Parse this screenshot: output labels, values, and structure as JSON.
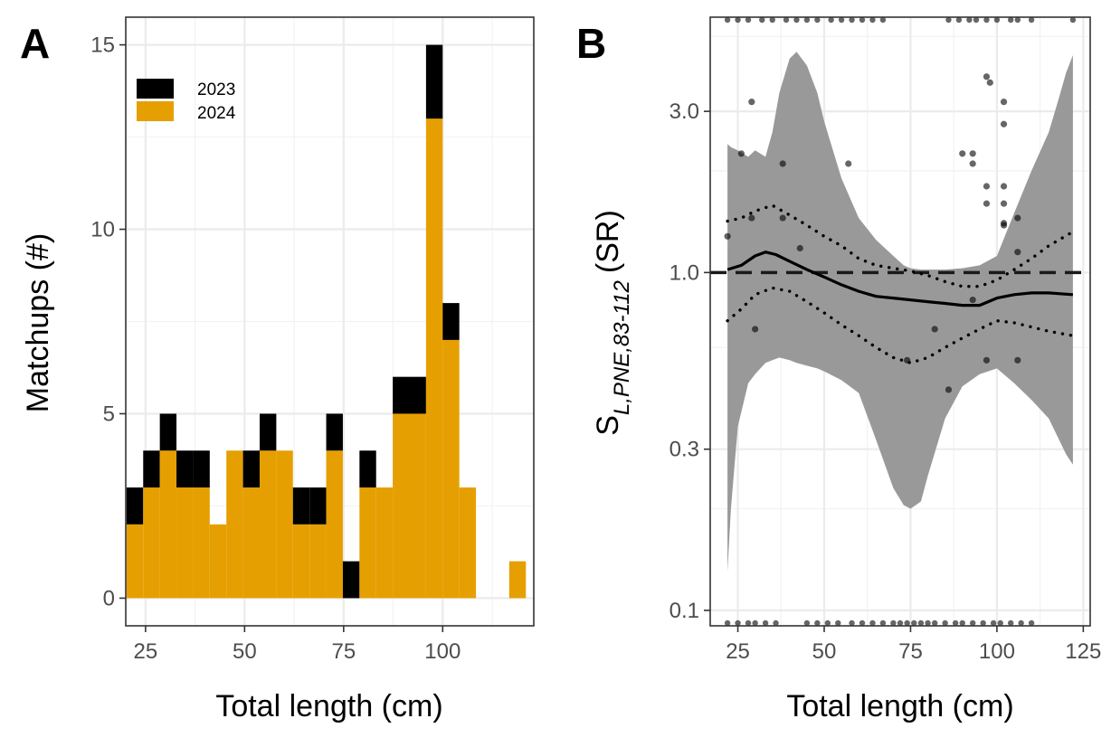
{
  "colors": {
    "y2023": "#000000",
    "y2024": "#E69F00",
    "band": "#999999"
  },
  "chart_data": [
    {
      "type": "bar",
      "panel_label": "A",
      "xlabel": "Total length (cm)",
      "ylabel": "Matchups (#)",
      "xlim": [
        20,
        123
      ],
      "ylim": [
        -0.75,
        15.75
      ],
      "x_ticks": [
        25,
        50,
        75,
        100
      ],
      "y_ticks": [
        0,
        5,
        10,
        15
      ],
      "grid": true,
      "stacked": true,
      "legend": {
        "position": "top-left",
        "entries": [
          "2023",
          "2024"
        ]
      },
      "bin_width": 4.2,
      "bin_centers": [
        22.3,
        26.5,
        30.7,
        34.9,
        39.1,
        43.3,
        47.5,
        51.7,
        55.9,
        60.1,
        64.3,
        68.5,
        72.7,
        76.9,
        81.1,
        85.3,
        89.5,
        93.7,
        97.9,
        102.1,
        106.3,
        110.5,
        114.7,
        118.9,
        123.1
      ],
      "series": [
        {
          "name": "2024",
          "values": [
            2,
            3,
            4,
            3,
            3,
            2,
            4,
            3,
            4,
            4,
            2,
            2,
            4,
            0,
            3,
            3,
            5,
            5,
            13,
            7,
            3,
            0,
            0,
            1,
            0
          ]
        },
        {
          "name": "2023",
          "values": [
            1,
            1,
            1,
            1,
            1,
            0,
            0,
            1,
            1,
            0,
            1,
            1,
            1,
            1,
            1,
            0,
            1,
            1,
            2,
            1,
            0,
            0,
            0,
            0,
            0
          ]
        }
      ]
    },
    {
      "type": "line",
      "panel_label": "B",
      "xlabel": "Total length (cm)",
      "ylabel_main": "S",
      "ylabel_sub": "L,PNE,83-112",
      "ylabel_unit": "(SR)",
      "y_scale": "log",
      "xlim": [
        17,
        127
      ],
      "ylim": [
        0.09,
        5.7
      ],
      "x_ticks": [
        25,
        50,
        75,
        100,
        125
      ],
      "y_ticks": [
        0.1,
        0.3,
        1.0,
        3.0
      ],
      "y_tick_labels": [
        "0.1",
        "0.3",
        "1.0",
        "3.0"
      ],
      "y_minor_ticks": [
        0.2,
        0.6,
        2.0,
        5.0
      ],
      "reference_line": 1.0,
      "grid": true,
      "series": [
        {
          "name": "",
          "style": "solid",
          "x": [
            22,
            26,
            30,
            33,
            36,
            40,
            45,
            50,
            55,
            60,
            65,
            70,
            75,
            80,
            85,
            90,
            95,
            100,
            105,
            110,
            115,
            122
          ],
          "y": [
            1.02,
            1.05,
            1.12,
            1.15,
            1.13,
            1.08,
            1.02,
            0.97,
            0.92,
            0.88,
            0.85,
            0.84,
            0.83,
            0.82,
            0.81,
            0.8,
            0.8,
            0.84,
            0.86,
            0.87,
            0.87,
            0.86
          ]
        },
        {
          "name": "",
          "style": "dotted",
          "x": [
            22,
            26,
            30,
            35,
            40,
            45,
            50,
            55,
            60,
            65,
            70,
            75,
            80,
            85,
            90,
            95,
            100,
            105,
            110,
            115,
            122
          ],
          "y": [
            1.42,
            1.45,
            1.52,
            1.58,
            1.48,
            1.38,
            1.28,
            1.2,
            1.1,
            1.05,
            1.03,
            1.01,
            0.98,
            0.94,
            0.91,
            0.91,
            0.95,
            1.02,
            1.1,
            1.2,
            1.32
          ]
        },
        {
          "name": "",
          "style": "dotted",
          "x": [
            22,
            26,
            30,
            35,
            40,
            45,
            50,
            55,
            60,
            65,
            70,
            75,
            80,
            85,
            90,
            95,
            100,
            105,
            110,
            115,
            122
          ],
          "y": [
            0.72,
            0.78,
            0.86,
            0.9,
            0.88,
            0.82,
            0.76,
            0.7,
            0.65,
            0.6,
            0.56,
            0.54,
            0.56,
            0.6,
            0.64,
            0.68,
            0.72,
            0.71,
            0.69,
            0.67,
            0.65
          ]
        }
      ],
      "band": {
        "x": [
          22,
          23,
          25,
          28,
          30,
          33,
          35,
          37,
          40,
          42,
          45,
          48,
          50,
          55,
          60,
          65,
          70,
          73,
          75,
          78,
          80,
          85,
          90,
          95,
          100,
          105,
          110,
          115,
          118,
          120,
          122
        ],
        "upper": [
          2.4,
          2.35,
          2.3,
          2.2,
          2.3,
          2.2,
          2.6,
          3.4,
          4.3,
          4.5,
          4.1,
          3.4,
          2.8,
          1.9,
          1.45,
          1.25,
          1.12,
          1.05,
          1.03,
          1.02,
          1.02,
          1.02,
          1.03,
          1.05,
          1.12,
          1.5,
          2.0,
          2.6,
          3.3,
          3.9,
          4.4
        ],
        "lower": [
          0.13,
          0.2,
          0.35,
          0.47,
          0.5,
          0.54,
          0.55,
          0.56,
          0.55,
          0.54,
          0.53,
          0.52,
          0.51,
          0.48,
          0.44,
          0.32,
          0.23,
          0.205,
          0.2,
          0.21,
          0.25,
          0.37,
          0.46,
          0.5,
          0.52,
          0.47,
          0.42,
          0.37,
          0.32,
          0.29,
          0.27
        ]
      },
      "points": {
        "x": [
          22,
          26,
          29,
          29,
          30,
          38,
          38,
          43,
          57,
          74,
          82,
          86,
          90,
          93,
          93,
          93,
          97,
          97,
          97,
          97,
          98,
          102,
          102,
          102,
          102,
          102,
          102,
          106,
          106,
          106
        ],
        "y": [
          1.28,
          2.25,
          3.2,
          1.45,
          0.68,
          2.1,
          1.45,
          1.18,
          2.1,
          0.55,
          0.68,
          0.45,
          2.25,
          2.25,
          2.1,
          0.83,
          3.8,
          1.8,
          1.6,
          0.55,
          3.65,
          3.2,
          2.75,
          1.8,
          1.6,
          1.4,
          1.38,
          1.45,
          1.15,
          0.55
        ]
      },
      "rug_top_x": [
        22,
        25,
        28,
        32,
        35,
        39,
        42,
        45,
        48,
        52,
        55,
        58,
        61,
        64,
        67,
        86,
        89,
        92,
        94,
        97,
        100,
        104,
        106,
        110,
        122
      ],
      "rug_bottom_x": [
        22,
        25,
        28,
        30,
        33,
        36,
        45,
        48,
        51,
        54,
        58,
        61,
        64,
        67,
        70,
        72,
        74,
        76,
        78,
        80,
        82,
        85,
        88,
        90,
        93,
        96,
        99,
        101,
        104,
        107,
        110
      ]
    }
  ]
}
